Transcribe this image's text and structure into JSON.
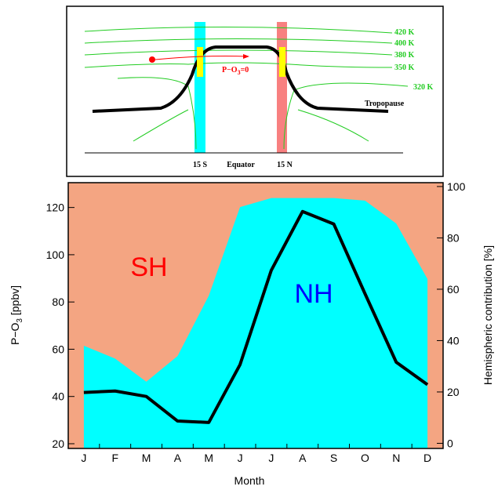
{
  "schematic": {
    "isentropes": [
      "420 K",
      "400 K",
      "380 K",
      "350 K",
      "320 K"
    ],
    "tropopause": "Tropopause",
    "process": {
      "text": "P−O",
      "sub": "3",
      "rest": "=0"
    },
    "latitudes": [
      "15 S",
      "Equator",
      "15 N"
    ]
  },
  "chart_data": {
    "type": "line",
    "xlabel": "Month",
    "ylabel": {
      "text": "P−O",
      "sub": "3",
      "rest": " [ppbv]"
    },
    "y2label": "Hemispheric contribution [%]",
    "categories": [
      "J",
      "F",
      "M",
      "A",
      "M",
      "J",
      "J",
      "A",
      "S",
      "O",
      "N",
      "D"
    ],
    "ylim": [
      18,
      130.5
    ],
    "yticks": [
      20,
      40,
      60,
      80,
      100,
      120
    ],
    "y2lim": [
      -2,
      101.5
    ],
    "y2ticks": [
      0,
      20,
      40,
      60,
      80,
      100
    ],
    "series": [
      {
        "color": "#000000",
        "values": [
          41.7,
          42.3,
          40,
          29.6,
          29,
          53.5,
          93.4,
          118.3,
          113,
          83.5,
          54.5,
          45
        ]
      },
      {
        "name": "NH",
        "color": "#00ffff",
        "label_color": "#0000ff",
        "type": "area",
        "axis": "y2",
        "values": [
          38,
          33,
          24,
          34,
          57.5,
          92,
          95.5,
          95.5,
          95.5,
          94.5,
          85.6,
          64
        ]
      }
    ],
    "background": {
      "name": "SH",
      "color": "#f4a582",
      "label_color": "#ff0000"
    }
  }
}
